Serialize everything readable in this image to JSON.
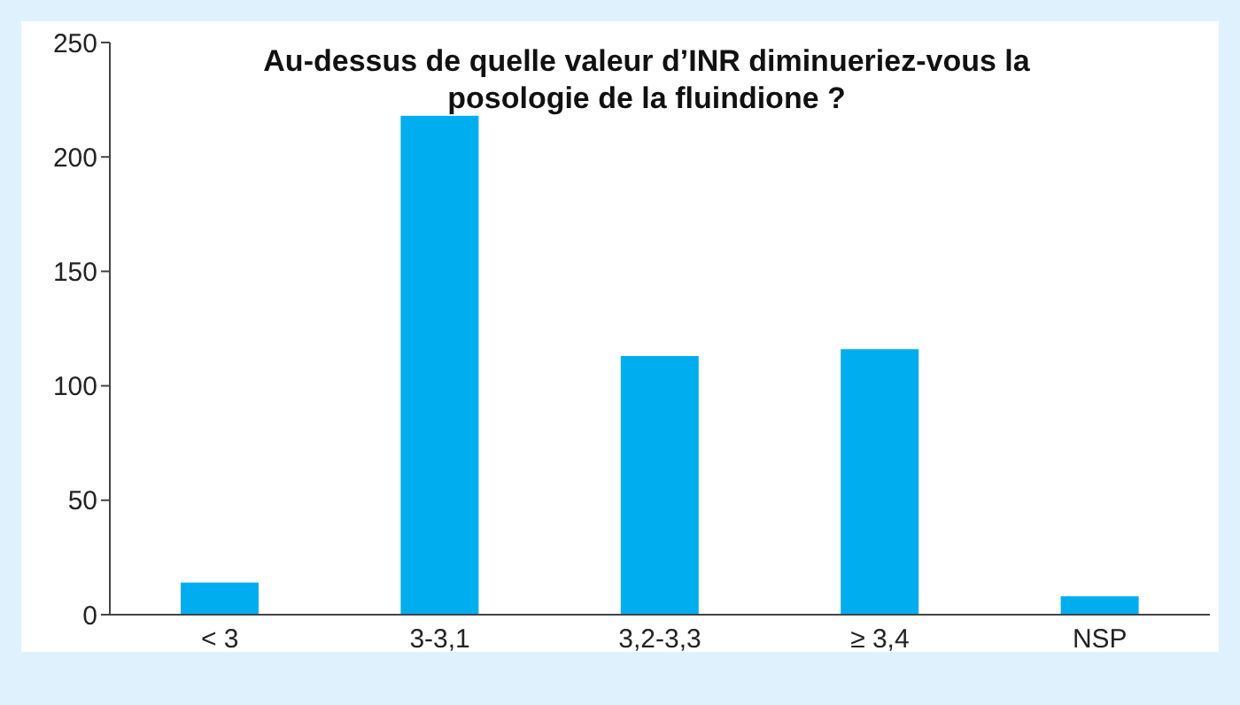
{
  "chart_data": {
    "type": "bar",
    "title": "Au-dessus de quelle valeur d’INR diminueriez-vous la posologie de la fluindione ?",
    "categories": [
      "< 3",
      "3-3,1",
      "3,2-3,3",
      "≥ 3,4",
      "NSP"
    ],
    "values": [
      14,
      218,
      113,
      116,
      8
    ],
    "color": "#00aeef",
    "ylim": [
      0,
      250
    ],
    "yticks": [
      0,
      50,
      100,
      150,
      200,
      250
    ],
    "grid": false
  }
}
